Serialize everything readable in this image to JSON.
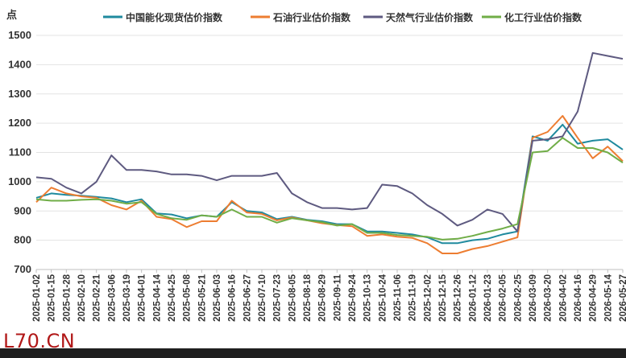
{
  "watermark": "L70.CN",
  "chart_data": {
    "type": "line",
    "ylabel": "点",
    "ylim": [
      700,
      1500
    ],
    "yticks": [
      700,
      800,
      900,
      1000,
      1100,
      1200,
      1300,
      1400,
      1500
    ],
    "grid": true,
    "legend_position": "top",
    "x_dates": [
      "2025-01-02",
      "2025-01-15",
      "2025-01-28",
      "2025-02-10",
      "2025-02-21",
      "2025-03-06",
      "2025-03-19",
      "2025-04-01",
      "2025-04-14",
      "2025-04-25",
      "2025-05-08",
      "2025-05-21",
      "2025-06-03",
      "2025-06-16",
      "2025-06-27",
      "2025-07-10",
      "2025-07-23",
      "2025-08-05",
      "2025-08-18",
      "2025-08-29",
      "2025-09-11",
      "2025-09-24",
      "2025-10-13",
      "2025-10-24",
      "2025-11-06",
      "2025-11-19",
      "2025-12-02",
      "2025-12-15",
      "2025-12-26",
      "2026-01-12",
      "2026-01-23",
      "2026-02-05",
      "2026-02-25",
      "2026-03-09",
      "2026-03-20",
      "2026-04-02",
      "2026-04-16",
      "2026-04-29",
      "2026-05-14",
      "2026-05-27"
    ],
    "series": [
      {
        "name": "中国能化现货估价指数",
        "color": "#1f8a9e",
        "values": [
          945,
          960,
          955,
          952,
          948,
          943,
          930,
          940,
          892,
          888,
          875,
          885,
          880,
          930,
          900,
          895,
          872,
          880,
          870,
          865,
          855,
          855,
          830,
          830,
          825,
          820,
          810,
          790,
          790,
          800,
          805,
          820,
          830,
          1155,
          1140,
          1195,
          1130,
          1140,
          1145,
          1110
        ]
      },
      {
        "name": "石油行业估价指数",
        "color": "#ed7d31",
        "values": [
          930,
          980,
          960,
          950,
          945,
          920,
          905,
          935,
          880,
          872,
          845,
          865,
          865,
          935,
          895,
          890,
          868,
          878,
          868,
          858,
          852,
          848,
          815,
          820,
          812,
          808,
          790,
          755,
          755,
          770,
          780,
          795,
          810,
          1150,
          1170,
          1225,
          1150,
          1080,
          1120,
          1070
        ]
      },
      {
        "name": "天然气行业估价指数",
        "color": "#5e5a80",
        "values": [
          1015,
          1010,
          980,
          960,
          1000,
          1090,
          1040,
          1040,
          1035,
          1025,
          1025,
          1020,
          1005,
          1020,
          1020,
          1020,
          1030,
          960,
          930,
          910,
          910,
          905,
          910,
          990,
          985,
          960,
          920,
          890,
          850,
          870,
          905,
          890,
          830,
          1140,
          1145,
          1155,
          1240,
          1440,
          1430,
          1420
        ]
      },
      {
        "name": "化工行业估价指数",
        "color": "#70ad47",
        "values": [
          940,
          935,
          935,
          938,
          940,
          935,
          925,
          930,
          890,
          875,
          870,
          885,
          880,
          905,
          880,
          880,
          860,
          875,
          868,
          862,
          850,
          855,
          825,
          825,
          818,
          815,
          812,
          802,
          805,
          815,
          828,
          840,
          855,
          1100,
          1105,
          1150,
          1115,
          1115,
          1100,
          1065
        ]
      }
    ]
  }
}
